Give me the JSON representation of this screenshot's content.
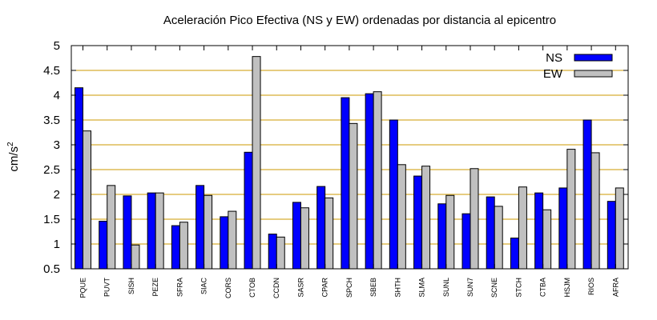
{
  "chart_data": {
    "type": "bar",
    "title": "Aceleración Pico Efectiva (NS y EW) ordenadas por distancia al epicentro",
    "ylabel_base": "cm/s",
    "ylabel_exp": "2",
    "xlabel": "",
    "ylim": [
      0.5,
      5
    ],
    "yticks": [
      "0.5",
      "1",
      "1.5",
      "2",
      "2.5",
      "3",
      "3.5",
      "4",
      "4.5",
      "5"
    ],
    "ytick_values": [
      0.5,
      1,
      1.5,
      2,
      2.5,
      3,
      3.5,
      4,
      4.5,
      5
    ],
    "grid": "horizontal",
    "legend_position": "top-right",
    "categories": [
      "PQUE",
      "PUVT",
      "SISH",
      "PEZE",
      "SFRA",
      "SIAC",
      "CORS",
      "CTOB",
      "CCDN",
      "SASR",
      "CPAR",
      "SPCH",
      "SBEB",
      "SHTH",
      "SLMA",
      "SUNL",
      "SUN7",
      "SCNE",
      "STCH",
      "CTBA",
      "HSJM",
      "RIOS",
      "AFRA"
    ],
    "series": [
      {
        "name": "NS",
        "color": "#0000ff",
        "values": [
          4.15,
          1.46,
          1.97,
          2.03,
          1.37,
          2.18,
          1.55,
          2.85,
          1.2,
          1.84,
          2.16,
          3.95,
          4.03,
          3.5,
          2.37,
          1.81,
          1.61,
          1.95,
          1.12,
          2.03,
          2.13,
          3.5,
          1.86
        ]
      },
      {
        "name": "EW",
        "color": "#c0c0c0",
        "values": [
          3.28,
          2.18,
          0.98,
          2.03,
          1.44,
          1.98,
          1.66,
          4.78,
          1.14,
          1.73,
          1.93,
          3.43,
          4.07,
          2.6,
          2.57,
          1.98,
          2.52,
          1.76,
          2.15,
          1.69,
          2.91,
          2.84,
          2.13
        ]
      }
    ],
    "grid_color": "#cc9900"
  }
}
